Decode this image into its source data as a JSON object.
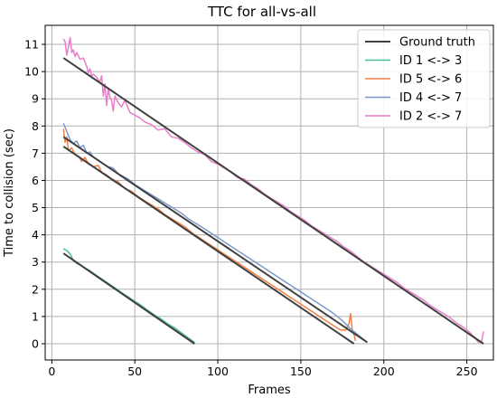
{
  "chart_data": {
    "type": "line",
    "title": "TTC for all-vs-all",
    "xlabel": "Frames",
    "ylabel": "Time to collision (sec)",
    "xlim": [
      -4,
      266
    ],
    "ylim": [
      -0.6,
      11.7
    ],
    "xticks": [
      0,
      50,
      100,
      150,
      200,
      250
    ],
    "yticks": [
      0,
      1,
      2,
      3,
      4,
      5,
      6,
      7,
      8,
      9,
      10,
      11
    ],
    "grid": true,
    "legend_position": "top-right",
    "series": [
      {
        "name": "Ground truth",
        "color": "#404040",
        "width": 2,
        "segments": [
          [
            [
              7,
              3.32
            ],
            [
              86,
              0.0
            ]
          ],
          [
            [
              7,
              7.25
            ],
            [
              182,
              0.0
            ]
          ],
          [
            [
              7,
              7.6
            ],
            [
              190,
              0.05
            ]
          ],
          [
            [
              7,
              10.5
            ],
            [
              260,
              0.0
            ]
          ]
        ]
      },
      {
        "name": "ID 1 <-> 3",
        "color": "#4cbf8f",
        "width": 1.5,
        "x": [
          7,
          9,
          11,
          13,
          15,
          17,
          20,
          23,
          26,
          30,
          34,
          38,
          42,
          46,
          50,
          54,
          58,
          62,
          66,
          70,
          74,
          78,
          82,
          86
        ],
        "y": [
          3.5,
          3.42,
          3.3,
          3.05,
          2.95,
          2.9,
          2.78,
          2.68,
          2.55,
          2.38,
          2.22,
          2.05,
          1.88,
          1.72,
          1.55,
          1.4,
          1.22,
          1.05,
          0.9,
          0.72,
          0.58,
          0.4,
          0.22,
          0.05
        ]
      },
      {
        "name": "ID 5 <-> 6",
        "color": "#f28040",
        "width": 1.5,
        "x": [
          7,
          8,
          9,
          10,
          12,
          14,
          16,
          18,
          20,
          22,
          25,
          28,
          30,
          33,
          36,
          40,
          44,
          48,
          52,
          56,
          60,
          64,
          68,
          72,
          76,
          80,
          85,
          90,
          95,
          100,
          105,
          110,
          115,
          120,
          125,
          130,
          135,
          140,
          145,
          150,
          155,
          160,
          165,
          170,
          174,
          177,
          179,
          180,
          181,
          182,
          183
        ],
        "y": [
          7.9,
          7.4,
          7.6,
          7.1,
          7.2,
          6.95,
          6.9,
          6.7,
          6.85,
          6.6,
          6.5,
          6.55,
          6.3,
          6.2,
          6.05,
          5.95,
          5.7,
          5.6,
          5.4,
          5.25,
          5.1,
          4.95,
          4.75,
          4.6,
          4.45,
          4.3,
          4.05,
          3.85,
          3.65,
          3.45,
          3.25,
          3.05,
          2.85,
          2.65,
          2.45,
          2.25,
          2.05,
          1.85,
          1.65,
          1.45,
          1.25,
          1.05,
          0.85,
          0.65,
          0.5,
          0.5,
          0.75,
          1.1,
          0.5,
          0.35,
          0.1
        ]
      },
      {
        "name": "ID 4 <-> 7",
        "color": "#7b99cc",
        "width": 1.5,
        "x": [
          7,
          9,
          11,
          13,
          15,
          17,
          19,
          21,
          23,
          25,
          28,
          31,
          34,
          37,
          40,
          43,
          46,
          50,
          54,
          58,
          62,
          66,
          70,
          74,
          78,
          82,
          86,
          90,
          95,
          100,
          105,
          110,
          115,
          120,
          125,
          130,
          135,
          140,
          145,
          150,
          155,
          160,
          165,
          170,
          175,
          180,
          185,
          190
        ],
        "y": [
          8.1,
          7.8,
          7.5,
          7.35,
          7.45,
          7.2,
          7.3,
          7.0,
          7.05,
          6.85,
          6.75,
          6.6,
          6.5,
          6.45,
          6.25,
          6.15,
          6.05,
          5.85,
          5.7,
          5.55,
          5.4,
          5.25,
          5.1,
          4.95,
          4.8,
          4.6,
          4.45,
          4.3,
          4.1,
          3.9,
          3.7,
          3.5,
          3.3,
          3.1,
          2.9,
          2.7,
          2.5,
          2.3,
          2.1,
          1.9,
          1.7,
          1.5,
          1.3,
          1.1,
          0.85,
          0.55,
          0.3,
          0.05
        ]
      },
      {
        "name": "ID 2 <-> 7",
        "color": "#e67fc7",
        "width": 1.5,
        "x": [
          7,
          8,
          9,
          10,
          11,
          12,
          13,
          14,
          15,
          17,
          19,
          21,
          22,
          23,
          24,
          25,
          27,
          29,
          30,
          31,
          32,
          33,
          34,
          35,
          36,
          37,
          38,
          40,
          42,
          44,
          47,
          50,
          53,
          56,
          60,
          64,
          68,
          72,
          76,
          80,
          84,
          88,
          92,
          96,
          100,
          104,
          108,
          112,
          116,
          120,
          124,
          128,
          132,
          136,
          140,
          144,
          148,
          152,
          156,
          160,
          164,
          168,
          172,
          176,
          180,
          184,
          188,
          192,
          196,
          200,
          204,
          208,
          212,
          216,
          220,
          224,
          228,
          232,
          236,
          240,
          244,
          248,
          252,
          255,
          257,
          259,
          260
        ],
        "y": [
          11.2,
          11.1,
          10.6,
          10.9,
          11.25,
          10.7,
          10.8,
          10.55,
          10.7,
          10.45,
          10.5,
          10.2,
          9.95,
          10.1,
          9.85,
          9.9,
          9.8,
          9.6,
          9.85,
          9.1,
          9.55,
          8.75,
          9.4,
          9.05,
          8.95,
          8.55,
          9.1,
          8.85,
          8.7,
          8.95,
          8.5,
          8.4,
          8.3,
          8.15,
          8.05,
          7.85,
          7.9,
          7.6,
          7.55,
          7.4,
          7.2,
          7.05,
          6.95,
          6.7,
          6.6,
          6.45,
          6.3,
          6.1,
          6.05,
          5.85,
          5.7,
          5.5,
          5.35,
          5.2,
          5.05,
          4.85,
          4.7,
          4.55,
          4.35,
          4.2,
          4.05,
          3.9,
          3.75,
          3.55,
          3.4,
          3.2,
          3.0,
          2.85,
          2.7,
          2.55,
          2.4,
          2.25,
          2.05,
          1.9,
          1.75,
          1.6,
          1.4,
          1.25,
          1.1,
          0.95,
          0.75,
          0.6,
          0.4,
          0.2,
          0.05,
          0.1,
          0.45
        ]
      }
    ]
  }
}
